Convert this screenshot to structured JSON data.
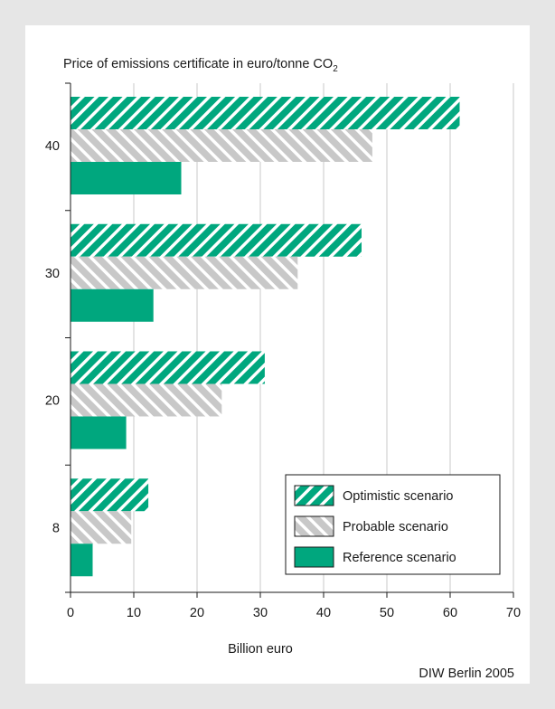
{
  "chart_data": {
    "type": "bar",
    "orientation": "horizontal",
    "title": "Price of emissions certificate in euro/tonne CO",
    "title_subscript": "2",
    "xlabel": "Billion euro",
    "ylabel": "",
    "categories": [
      "40",
      "30",
      "20",
      "8"
    ],
    "series": [
      {
        "name": "Optimistic scenario",
        "values": [
          61.5,
          46.0,
          30.7,
          12.3
        ],
        "color": "#00a77e",
        "pattern": "hatch-green"
      },
      {
        "name": "Probable scenario",
        "values": [
          47.7,
          35.9,
          23.9,
          9.6
        ],
        "color": "#c8c8c8",
        "pattern": "hatch-grey"
      },
      {
        "name": "Reference scenario",
        "values": [
          17.5,
          13.1,
          8.8,
          3.5
        ],
        "color": "#00a77e",
        "pattern": "solid"
      }
    ],
    "xlim": [
      0,
      70
    ],
    "xticks": [
      "0",
      "10",
      "20",
      "30",
      "40",
      "50",
      "60",
      "70"
    ],
    "grid": true,
    "legend_position": "bottom-right"
  },
  "source": "DIW Berlin 2005",
  "colors": {
    "accent_green": "#00a77e",
    "hatch_grey": "#c8c8c8",
    "background": "#e6e6e6",
    "panel": "#ffffff",
    "grid": "#c8c8c8"
  }
}
